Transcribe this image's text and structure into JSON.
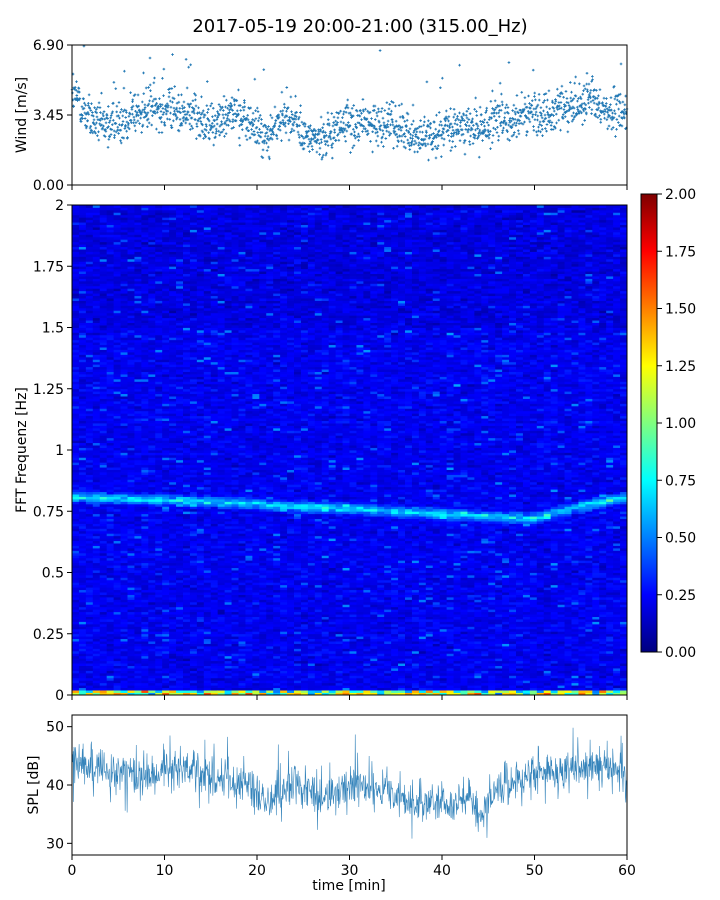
{
  "chart_data": [
    {
      "type": "scatter",
      "title": "2017-05-19 20:00-21:00 (315.00_Hz)",
      "ylabel": "Wind [m/s]",
      "xlim": [
        0,
        60
      ],
      "ylim": [
        0,
        6.9
      ],
      "y_ticks": [
        "0.00",
        "3.45",
        "6.90"
      ],
      "series": [
        {
          "color": "#1f77b4",
          "marker": "+",
          "trend": [
            [
              0,
              4.6
            ],
            [
              2,
              3.2
            ],
            [
              4,
              3.0
            ],
            [
              6,
              3.3
            ],
            [
              8,
              3.6
            ],
            [
              9,
              3.9
            ],
            [
              10,
              3.8
            ],
            [
              12,
              3.6
            ],
            [
              14,
              3.3
            ],
            [
              15,
              2.9
            ],
            [
              17,
              3.6
            ],
            [
              18,
              3.3
            ],
            [
              20,
              2.9
            ],
            [
              21,
              2.3
            ],
            [
              23,
              3.4
            ],
            [
              24,
              3.1
            ],
            [
              25,
              2.4
            ],
            [
              27,
              2.3
            ],
            [
              28,
              2.7
            ],
            [
              30,
              3.0
            ],
            [
              32,
              3.1
            ],
            [
              34,
              3.2
            ],
            [
              36,
              2.7
            ],
            [
              38,
              2.4
            ],
            [
              40,
              2.6
            ],
            [
              42,
              2.9
            ],
            [
              44,
              2.8
            ],
            [
              46,
              3.1
            ],
            [
              48,
              3.3
            ],
            [
              50,
              3.4
            ],
            [
              52,
              3.6
            ],
            [
              54,
              3.9
            ],
            [
              56,
              4.1
            ],
            [
              58,
              3.6
            ],
            [
              60,
              3.6
            ]
          ],
          "spread": 0.75,
          "n_points": 1800
        }
      ]
    },
    {
      "type": "heatmap",
      "ylabel": "FFT Frequenz [Hz]",
      "xlim": [
        0,
        60
      ],
      "ylim": [
        0,
        2
      ],
      "y_ticks": [
        "0",
        "0.25",
        "0.5",
        "0.75",
        "1",
        "1.25",
        "1.5",
        "1.75",
        "2"
      ],
      "colormap": "jet",
      "clim": [
        0,
        2
      ],
      "colorbar_ticks": [
        "0.00",
        "0.25",
        "0.50",
        "0.75",
        "1.00",
        "1.25",
        "1.50",
        "1.75",
        "2.00"
      ],
      "base_level": 0.22,
      "ridge": {
        "frequency_hz": [
          [
            0,
            0.81
          ],
          [
            15,
            0.79
          ],
          [
            25,
            0.77
          ],
          [
            35,
            0.75
          ],
          [
            45,
            0.73
          ],
          [
            50,
            0.72
          ],
          [
            55,
            0.77
          ],
          [
            60,
            0.81
          ]
        ],
        "level": 0.75
      },
      "low_frequency_band": {
        "max_hz": 0.02,
        "level": 1.3
      }
    },
    {
      "type": "line",
      "ylabel": "SPL [dB]",
      "xlabel": "time [min]",
      "xlim": [
        0,
        60
      ],
      "ylim": [
        28,
        52
      ],
      "y_ticks": [
        "30",
        "40",
        "50"
      ],
      "x_ticks": [
        "0",
        "10",
        "20",
        "30",
        "40",
        "50",
        "60"
      ],
      "series": [
        {
          "color": "#1f77b4",
          "trend": [
            [
              0,
              43.5
            ],
            [
              3,
              42.5
            ],
            [
              6,
              42
            ],
            [
              8,
              41.5
            ],
            [
              10,
              43
            ],
            [
              12,
              43
            ],
            [
              15,
              42
            ],
            [
              18,
              40.5
            ],
            [
              20,
              39
            ],
            [
              21,
              36.5
            ],
            [
              22,
              37.5
            ],
            [
              24,
              40.5
            ],
            [
              25,
              39.5
            ],
            [
              27,
              37.5
            ],
            [
              28,
              38.5
            ],
            [
              30,
              40
            ],
            [
              32,
              39
            ],
            [
              34,
              38.5
            ],
            [
              36,
              37.5
            ],
            [
              38,
              36.5
            ],
            [
              40,
              38
            ],
            [
              41,
              35
            ],
            [
              42,
              38
            ],
            [
              43,
              38
            ],
            [
              44,
              34
            ],
            [
              45,
              38
            ],
            [
              47,
              40
            ],
            [
              50,
              42
            ],
            [
              53,
              42.5
            ],
            [
              56,
              43
            ],
            [
              60,
              42.5
            ]
          ],
          "spread": 3.0
        }
      ]
    }
  ]
}
